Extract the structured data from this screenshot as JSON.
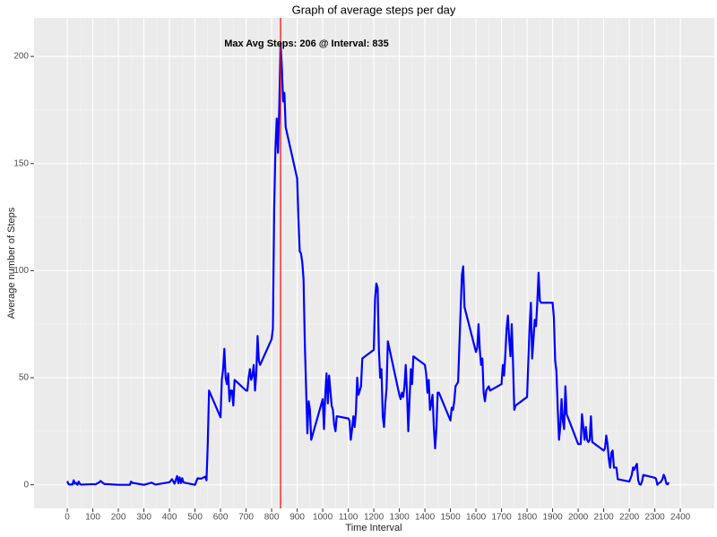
{
  "chart_data": {
    "type": "line",
    "title": "Graph of average steps per day",
    "x_label": "Time Interval",
    "y_label": "Average number of Steps",
    "annotation": "Max Avg Steps: 206 @ Interval: 835",
    "vline": 835,
    "vline_color": "#ff0000",
    "x": [
      0,
      5,
      10,
      15,
      20,
      25,
      30,
      35,
      40,
      45,
      50,
      55,
      100,
      110,
      125,
      130,
      145,
      200,
      230,
      245,
      250,
      255,
      300,
      330,
      345,
      400,
      410,
      420,
      430,
      435,
      440,
      445,
      450,
      455,
      500,
      510,
      525,
      540,
      545,
      550,
      555,
      600,
      605,
      610,
      615,
      620,
      625,
      630,
      635,
      640,
      645,
      650,
      655,
      700,
      705,
      710,
      715,
      720,
      725,
      730,
      735,
      740,
      745,
      750,
      755,
      800,
      805,
      810,
      815,
      820,
      825,
      830,
      835,
      840,
      845,
      850,
      855,
      900,
      905,
      910,
      915,
      920,
      925,
      930,
      935,
      940,
      945,
      950,
      955,
      1000,
      1005,
      1010,
      1015,
      1020,
      1025,
      1030,
      1035,
      1040,
      1045,
      1050,
      1055,
      1100,
      1105,
      1110,
      1115,
      1120,
      1125,
      1130,
      1135,
      1140,
      1145,
      1150,
      1155,
      1200,
      1205,
      1210,
      1215,
      1220,
      1225,
      1230,
      1235,
      1240,
      1245,
      1250,
      1255,
      1300,
      1305,
      1310,
      1315,
      1320,
      1325,
      1330,
      1335,
      1340,
      1345,
      1350,
      1355,
      1400,
      1405,
      1410,
      1415,
      1420,
      1425,
      1430,
      1435,
      1440,
      1445,
      1450,
      1455,
      1500,
      1505,
      1510,
      1515,
      1520,
      1525,
      1530,
      1535,
      1540,
      1545,
      1550,
      1555,
      1600,
      1605,
      1610,
      1615,
      1620,
      1625,
      1630,
      1635,
      1640,
      1645,
      1650,
      1655,
      1700,
      1705,
      1710,
      1715,
      1720,
      1725,
      1730,
      1735,
      1740,
      1745,
      1750,
      1755,
      1800,
      1805,
      1810,
      1815,
      1820,
      1825,
      1830,
      1835,
      1840,
      1845,
      1850,
      1855,
      1900,
      1905,
      1910,
      1915,
      1920,
      1925,
      1930,
      1935,
      1940,
      1945,
      1950,
      1955,
      2000,
      2005,
      2010,
      2015,
      2020,
      2025,
      2030,
      2035,
      2040,
      2045,
      2050,
      2055,
      2100,
      2105,
      2110,
      2115,
      2120,
      2125,
      2130,
      2135,
      2140,
      2145,
      2150,
      2155,
      2200,
      2205,
      2210,
      2215,
      2220,
      2225,
      2230,
      2235,
      2240,
      2245,
      2250,
      2255,
      2300,
      2305,
      2310,
      2315,
      2320,
      2325,
      2330,
      2335,
      2340,
      2345,
      2350,
      2355
    ],
    "series": [
      {
        "name": "steps",
        "color": "#0000ff",
        "values": [
          1.7,
          0.3,
          0.1,
          0.2,
          0.1,
          2.1,
          0.5,
          0.9,
          0,
          1.5,
          0.3,
          0.1,
          0.3,
          0.2,
          1.1,
          1.8,
          0.4,
          0,
          0,
          0,
          1.5,
          0.9,
          0,
          1,
          0.1,
          1.2,
          2.6,
          0.5,
          4.1,
          0.7,
          3.5,
          0.8,
          3.1,
          1.1,
          0,
          3,
          2.9,
          3.8,
          2.1,
          19,
          44,
          31.5,
          49,
          53.8,
          63.5,
          50,
          47,
          52,
          39,
          44,
          44,
          37,
          49,
          44,
          44,
          50,
          54,
          49,
          51,
          56,
          44,
          52,
          69.5,
          58,
          56,
          68,
          73,
          129,
          157,
          171,
          155,
          177,
          206,
          195,
          179,
          183,
          167,
          143,
          124,
          109,
          108,
          104,
          96,
          66,
          45,
          24,
          39,
          35,
          21,
          40,
          26,
          42,
          52,
          38,
          51,
          44,
          37,
          35,
          28,
          25,
          32,
          31,
          30,
          21,
          26,
          32,
          27,
          34,
          50,
          42,
          44,
          46,
          59,
          63,
          87,
          94,
          92,
          63,
          50,
          54,
          32,
          27,
          38,
          45,
          67,
          42,
          40,
          43,
          41,
          46,
          56,
          43,
          25,
          40,
          54,
          47,
          60,
          56,
          52,
          43,
          49,
          35,
          38,
          42,
          27,
          17,
          26,
          43,
          43,
          30,
          36,
          35,
          39,
          46,
          47,
          48,
          65,
          82,
          98,
          102,
          83,
          62,
          64,
          75,
          63,
          56,
          59,
          43,
          39,
          44,
          45,
          46,
          44,
          47,
          56,
          51,
          61,
          73,
          79,
          68,
          60,
          75,
          57,
          35,
          37,
          41,
          58,
          74,
          85,
          59,
          68,
          77,
          74,
          85,
          99,
          86,
          85,
          85,
          78,
          58,
          53,
          36,
          21,
          27,
          40,
          30,
          26,
          46,
          33,
          19,
          19,
          19,
          33,
          27,
          21,
          27,
          21,
          20,
          21,
          32,
          20,
          16,
          17,
          23,
          19,
          12,
          8,
          15,
          16,
          8,
          8,
          8,
          2.6,
          1.5,
          3,
          4.7,
          8.1,
          7,
          8.7,
          9.8,
          2.2,
          0.3,
          0.1,
          1.6,
          4.6,
          3.3,
          2.8,
          0,
          0.8,
          1,
          1.6,
          2.6,
          4.7,
          3.3,
          0.6,
          0.2,
          1.1
        ]
      }
    ],
    "xlim": [
      -130,
      2533
    ],
    "ylim": [
      -11,
      218
    ],
    "xticks": [
      0,
      100,
      200,
      300,
      400,
      500,
      600,
      700,
      800,
      900,
      1000,
      1100,
      1200,
      1300,
      1400,
      1500,
      1600,
      1700,
      1800,
      1900,
      2000,
      2100,
      2200,
      2300,
      2400
    ],
    "yticks": [
      0,
      50,
      100,
      150,
      200
    ],
    "grid": true
  }
}
